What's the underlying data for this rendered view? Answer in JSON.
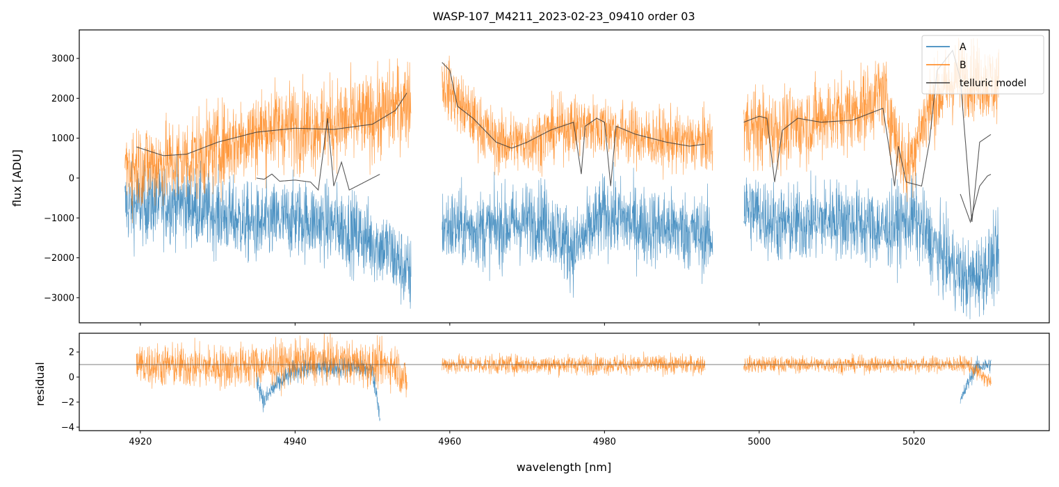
{
  "chart_data": {
    "type": "line",
    "title": "WASP-107_M4211_2023-02-23_09410  order 03",
    "xlabel": "wavelength [nm]",
    "xlim": [
      4912.1,
      5037.5
    ],
    "xticks": [
      4920,
      4940,
      4960,
      4980,
      5000,
      5020
    ],
    "panels": [
      {
        "name": "flux",
        "ylabel": "flux [ADU]",
        "ylim": [
          -3630,
          3715
        ],
        "yticks": [
          -3000,
          -2000,
          -1000,
          0,
          1000,
          2000,
          3000
        ],
        "ytick_labels": [
          "−3000",
          "−2000",
          "−1000",
          "0",
          "1000",
          "2000",
          "3000"
        ],
        "legend": {
          "placement": "top-right",
          "entries": [
            "A",
            "B",
            "telluric model"
          ]
        },
        "series": [
          {
            "name": "A",
            "color": "#1f77b4",
            "kind": "noisy",
            "segments": [
              {
                "mean": [
                  [
                    4918,
                    -700
                  ],
                  [
                    4925,
                    -600
                  ],
                  [
                    4935,
                    -1200
                  ],
                  [
                    4940,
                    -1000
                  ],
                  [
                    4946,
                    -1200
                  ],
                  [
                    4952,
                    -1800
                  ],
                  [
                    4955,
                    -2500
                  ]
                ],
                "amp": 900
              },
              {
                "mean": [
                  [
                    4959,
                    -1200
                  ],
                  [
                    4965,
                    -1300
                  ],
                  [
                    4972,
                    -1000
                  ],
                  [
                    4976,
                    -1800
                  ],
                  [
                    4980,
                    -900
                  ],
                  [
                    4985,
                    -1200
                  ],
                  [
                    4990,
                    -1300
                  ],
                  [
                    4994,
                    -1500
                  ]
                ],
                "amp": 900
              },
              {
                "mean": [
                  [
                    4998,
                    -700
                  ],
                  [
                    5003,
                    -1200
                  ],
                  [
                    5010,
                    -1000
                  ],
                  [
                    5016,
                    -1300
                  ],
                  [
                    5020,
                    -1000
                  ],
                  [
                    5023,
                    -1800
                  ],
                  [
                    5027,
                    -2600
                  ],
                  [
                    5031,
                    -2000
                  ]
                ],
                "amp": 900
              }
            ]
          },
          {
            "name": "B",
            "color": "#ff7f0e",
            "kind": "noisy",
            "segments": [
              {
                "mean": [
                  [
                    4918,
                    300
                  ],
                  [
                    4925,
                    400
                  ],
                  [
                    4932,
                    900
                  ],
                  [
                    4937,
                    1300
                  ],
                  [
                    4942,
                    1300
                  ],
                  [
                    4946,
                    1400
                  ],
                  [
                    4950,
                    1500
                  ],
                  [
                    4955,
                    2000
                  ]
                ],
                "amp": 1000
              },
              {
                "mean": [
                  [
                    4959,
                    2400
                  ],
                  [
                    4962,
                    1700
                  ],
                  [
                    4966,
                    900
                  ],
                  [
                    4970,
                    900
                  ],
                  [
                    4975,
                    1300
                  ],
                  [
                    4980,
                    1300
                  ],
                  [
                    4985,
                    1000
                  ],
                  [
                    4990,
                    900
                  ],
                  [
                    4994,
                    900
                  ]
                ],
                "amp": 700
              },
              {
                "mean": [
                  [
                    4998,
                    1300
                  ],
                  [
                    5003,
                    1200
                  ],
                  [
                    5008,
                    1500
                  ],
                  [
                    5013,
                    1700
                  ],
                  [
                    5016,
                    2200
                  ],
                  [
                    5019,
                    200
                  ],
                  [
                    5022,
                    1800
                  ],
                  [
                    5026,
                    2600
                  ],
                  [
                    5031,
                    2300
                  ]
                ],
                "amp": 900
              }
            ]
          },
          {
            "name": "telluric model",
            "color": "#3a3a3a",
            "kind": "curve",
            "segments": [
              [
                [
                  4919.5,
                  780
                ],
                [
                  4923,
                  560
                ],
                [
                  4926,
                  600
                ],
                [
                  4930,
                  900
                ],
                [
                  4935,
                  1150
                ],
                [
                  4940,
                  1250
                ],
                [
                  4945,
                  1220
                ],
                [
                  4950,
                  1350
                ],
                [
                  4953,
                  1700
                ],
                [
                  4954.5,
                  2150
                ]
              ],
              [
                [
                  4935,
                  0
                ],
                [
                  4936,
                  -30
                ],
                [
                  4937,
                  100
                ],
                [
                  4938,
                  -80
                ],
                [
                  4940,
                  -50
                ],
                [
                  4942,
                  -100
                ],
                [
                  4943,
                  -300
                ],
                [
                  4944.2,
                  1500
                ],
                [
                  4945,
                  -200
                ],
                [
                  4946,
                  400
                ],
                [
                  4947,
                  -300
                ],
                [
                  4948,
                  -200
                ],
                [
                  4950,
                  0
                ],
                [
                  4951,
                  100
                ]
              ],
              [
                [
                  4959,
                  2900
                ],
                [
                  4960,
                  2700
                ],
                [
                  4961,
                  1800
                ],
                [
                  4963,
                  1500
                ],
                [
                  4966,
                  900
                ],
                [
                  4968,
                  750
                ],
                [
                  4970,
                  900
                ],
                [
                  4973,
                  1200
                ],
                [
                  4976,
                  1400
                ],
                [
                  4977,
                  100
                ],
                [
                  4977.5,
                  1300
                ],
                [
                  4979,
                  1500
                ],
                [
                  4980,
                  1400
                ],
                [
                  4980.8,
                  -200
                ],
                [
                  4981.5,
                  1300
                ],
                [
                  4984,
                  1100
                ],
                [
                  4988,
                  900
                ],
                [
                  4991,
                  800
                ],
                [
                  4993,
                  850
                ]
              ],
              [
                [
                  4998,
                  1400
                ],
                [
                  5000,
                  1550
                ],
                [
                  5001,
                  1500
                ],
                [
                  5002,
                  -100
                ],
                [
                  5003,
                  1200
                ],
                [
                  5005,
                  1500
                ],
                [
                  5008,
                  1400
                ],
                [
                  5012,
                  1450
                ],
                [
                  5014,
                  1600
                ],
                [
                  5016,
                  1750
                ],
                [
                  5017,
                  500
                ],
                [
                  5017.5,
                  -200
                ],
                [
                  5018,
                  800
                ],
                [
                  5019,
                  -100
                ],
                [
                  5021,
                  -200
                ],
                [
                  5022,
                  900
                ],
                [
                  5023,
                  2700
                ],
                [
                  5025,
                  3200
                ],
                [
                  5026,
                  2500
                ],
                [
                  5027.5,
                  -1100
                ],
                [
                  5028.5,
                  900
                ],
                [
                  5030,
                  1100
                ]
              ],
              [
                [
                  5026,
                  -400
                ],
                [
                  5027.3,
                  -1100
                ],
                [
                  5028.5,
                  -200
                ],
                [
                  5029.5,
                  50
                ],
                [
                  5030,
                  100
                ]
              ]
            ]
          }
        ]
      },
      {
        "name": "residual",
        "ylabel": "residual",
        "ylim": [
          -4.28,
          3.5
        ],
        "yticks": [
          -4,
          -2,
          0,
          2
        ],
        "ytick_labels": [
          "−4",
          "−2",
          "0",
          "2"
        ],
        "hline": 1,
        "series": [
          {
            "name": "A",
            "color": "#1f77b4",
            "kind": "noisy",
            "segments": [
              {
                "mean": [
                  [
                    4935,
                    0
                  ],
                  [
                    4936,
                    -2
                  ],
                  [
                    4937,
                    -1
                  ],
                  [
                    4940,
                    0.6
                  ],
                  [
                    4944,
                    0.8
                  ],
                  [
                    4948,
                    0.8
                  ],
                  [
                    4950,
                    0.5
                  ],
                  [
                    4951,
                    -3
                  ]
                ],
                "amp": 0.8
              },
              {
                "mean": [
                  [
                    5026,
                    -2
                  ],
                  [
                    5027,
                    -0.5
                  ],
                  [
                    5028,
                    0.8
                  ],
                  [
                    5030,
                    1
                  ]
                ],
                "amp": 0.6
              }
            ]
          },
          {
            "name": "B",
            "color": "#ff7f0e",
            "kind": "noisy",
            "segments": [
              {
                "mean": [
                  [
                    4919.5,
                    1
                  ],
                  [
                    4930,
                    0.8
                  ],
                  [
                    4936,
                    1
                  ],
                  [
                    4944,
                    1.3
                  ],
                  [
                    4950,
                    1
                  ],
                  [
                    4953,
                    1
                  ],
                  [
                    4954.5,
                    -0.5
                  ]
                ],
                "amp": 1.6
              },
              {
                "mean": [
                  [
                    4959,
                    1
                  ],
                  [
                    4970,
                    1
                  ],
                  [
                    4980,
                    1
                  ],
                  [
                    4993,
                    1
                  ]
                ],
                "amp": 0.7
              },
              {
                "mean": [
                  [
                    4998,
                    1
                  ],
                  [
                    5010,
                    1
                  ],
                  [
                    5020,
                    1
                  ],
                  [
                    5027,
                    1
                  ],
                  [
                    5030,
                    -0.5
                  ]
                ],
                "amp": 0.6
              }
            ]
          }
        ]
      }
    ]
  }
}
